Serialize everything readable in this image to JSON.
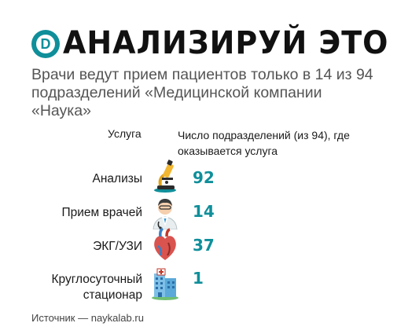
{
  "header": {
    "logo_letter": "D",
    "title": "АНАЛИЗИРУЙ ЭТО",
    "subtitle": "Врачи ведут прием пациентов только в 14 из 94 подразделений «Медицинской компании «Наука»"
  },
  "columns": {
    "service": "Услуга",
    "count": "Число подразделений (из 94), где оказывается услуга"
  },
  "rows": [
    {
      "label": "Анализы",
      "value": "92",
      "icon": "microscope-icon"
    },
    {
      "label": "Прием врачей",
      "value": "14",
      "icon": "doctor-icon"
    },
    {
      "label": "ЭКГ/УЗИ",
      "value": "37",
      "icon": "heart-icon"
    },
    {
      "label": "Круглосуточный стационар",
      "value": "1",
      "icon": "hospital-icon"
    }
  ],
  "source": "Источник — naykalab.ru",
  "colors": {
    "accent": "#0f8f9a",
    "text": "#1a1a1a",
    "subtitle": "#555555"
  },
  "chart_data": {
    "type": "table",
    "title": "АНАЛИЗИРУЙ ЭТО",
    "subtitle": "Врачи ведут прием пациентов только в 14 из 94 подразделений «Медицинской компании «Наука»",
    "columns": [
      "Услуга",
      "Число подразделений (из 94), где оказывается услуга"
    ],
    "categories": [
      "Анализы",
      "Прием врачей",
      "ЭКГ/УЗИ",
      "Круглосуточный стационар"
    ],
    "values": [
      92,
      14,
      37,
      1
    ],
    "total": 94
  }
}
